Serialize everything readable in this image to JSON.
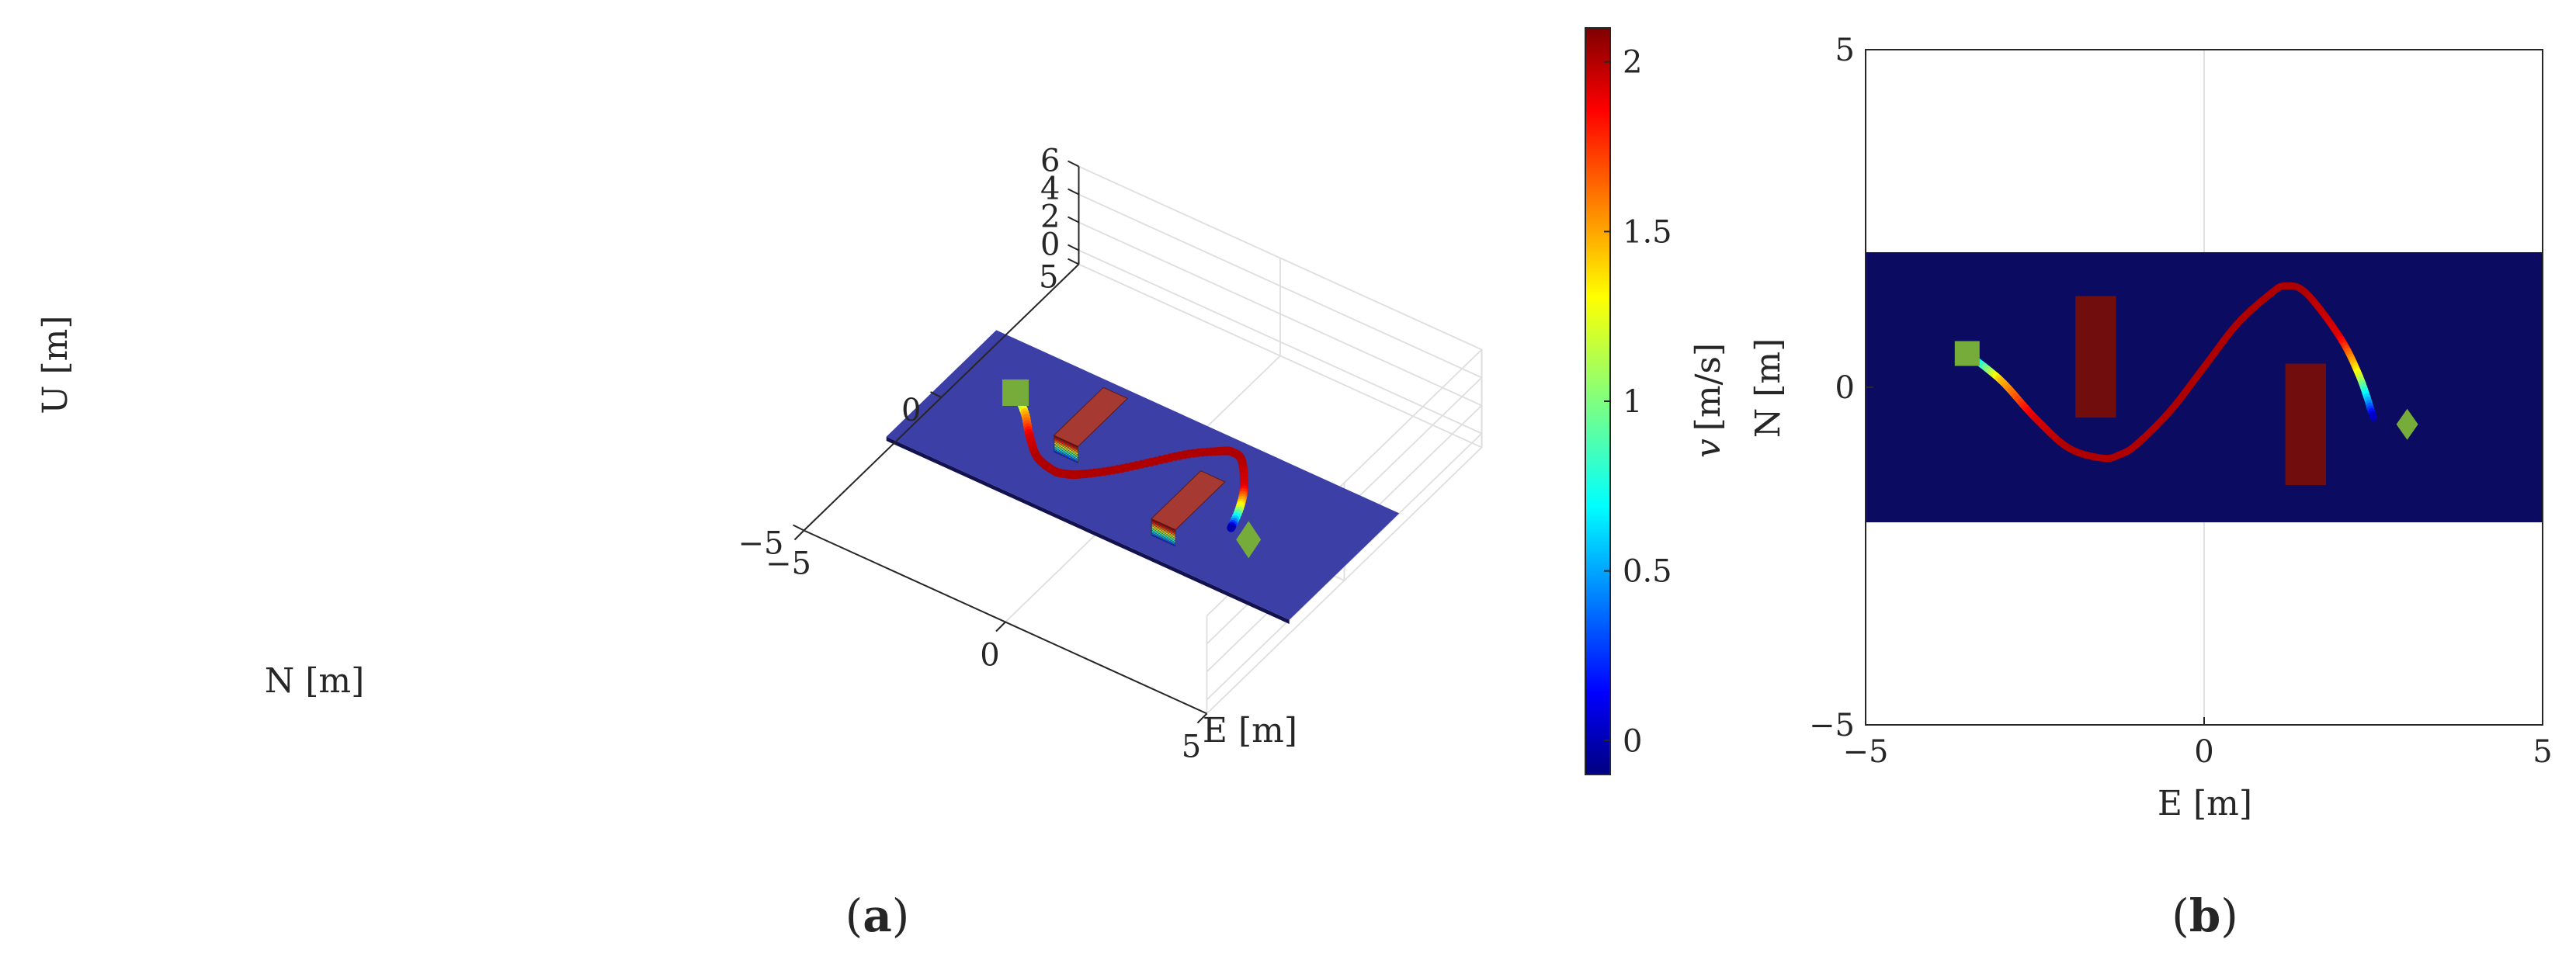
{
  "panel_a": {
    "label_open": "(",
    "label_letter": "a",
    "label_close": ")",
    "axes": {
      "x_label": "E [m]",
      "y_label": "N [m]",
      "z_label": "U [m]",
      "x_ticks": [
        "−5",
        "0",
        "5"
      ],
      "y_ticks": [
        "−5",
        "0",
        "5"
      ],
      "z_ticks": [
        "0",
        "2",
        "4",
        "6"
      ]
    },
    "colorbar": {
      "label_var": "v",
      "label_units": "[m/s]",
      "ticks": [
        "0",
        "0.5",
        "1",
        "1.5",
        "2"
      ]
    }
  },
  "panel_b": {
    "label_open": "(",
    "label_letter": "b",
    "label_close": ")",
    "axes": {
      "x_label": "E [m]",
      "y_label": "N [m]",
      "x_ticks": [
        "−5",
        "0",
        "5"
      ],
      "y_ticks": [
        "−5",
        "0",
        "5"
      ]
    }
  },
  "colors": {
    "corridor_2d": "#0b0b62",
    "corridor_3d": "#3c3fa6",
    "obstacle": "#720d0d",
    "marker": "#76ad3a"
  },
  "chart_data": [
    {
      "type": "scatter",
      "id": "3d-trajectory",
      "title": "",
      "xlabel": "E [m]",
      "ylabel": "N [m]",
      "zlabel": "U [m]",
      "xlim": [
        -5,
        5
      ],
      "ylim": [
        -5,
        5
      ],
      "zlim": [
        -1,
        6
      ],
      "corridor": {
        "e": [
          -5,
          5
        ],
        "n": [
          -2,
          2
        ]
      },
      "obstacles": [
        {
          "e": [
            -1.9,
            -1.3
          ],
          "n": [
            -0.45,
            1.35
          ],
          "u": [
            0,
            1.2
          ]
        },
        {
          "e": [
            1.2,
            1.8
          ],
          "n": [
            -1.45,
            0.35
          ],
          "u": [
            0,
            1.2
          ]
        }
      ],
      "start": {
        "e": -3.5,
        "n": 0.5
      },
      "goal": {
        "e": 3.0,
        "n": -0.55
      },
      "colorbar": {
        "label": "v [m/s]",
        "range": [
          -0.1,
          2.1
        ],
        "ticks": [
          0,
          0.5,
          1,
          1.5,
          2
        ]
      }
    },
    {
      "type": "line",
      "id": "2d-trajectory",
      "title": "",
      "xlabel": "E [m]",
      "ylabel": "N [m]",
      "xlim": [
        -5,
        5
      ],
      "ylim": [
        -5,
        5
      ],
      "grid": true,
      "corridor": {
        "e": [
          -5,
          5
        ],
        "n": [
          -2,
          2
        ]
      },
      "obstacles": [
        {
          "e": [
            -1.9,
            -1.3
          ],
          "n": [
            -0.45,
            1.35
          ]
        },
        {
          "e": [
            1.2,
            1.8
          ],
          "n": [
            -1.45,
            0.35
          ]
        }
      ],
      "start": {
        "e": -3.5,
        "n": 0.5
      },
      "goal": {
        "e": 3.0,
        "n": -0.55
      },
      "trajectory": {
        "e": [
          -3.5,
          -3.0,
          -2.5,
          -2.0,
          -1.5,
          -1.25,
          -1.0,
          -0.5,
          0.0,
          0.5,
          1.0,
          1.2,
          1.5,
          2.0,
          2.3,
          2.5
        ],
        "n": [
          0.5,
          0.1,
          -0.45,
          -0.9,
          -1.05,
          -1.0,
          -0.85,
          -0.35,
          0.3,
          0.95,
          1.4,
          1.5,
          1.4,
          0.75,
          0.15,
          -0.45
        ],
        "speed": [
          0.2,
          1.4,
          1.9,
          2.0,
          2.0,
          2.0,
          2.0,
          2.0,
          2.0,
          2.0,
          2.0,
          2.0,
          2.0,
          1.9,
          1.2,
          0.0
        ]
      }
    }
  ]
}
